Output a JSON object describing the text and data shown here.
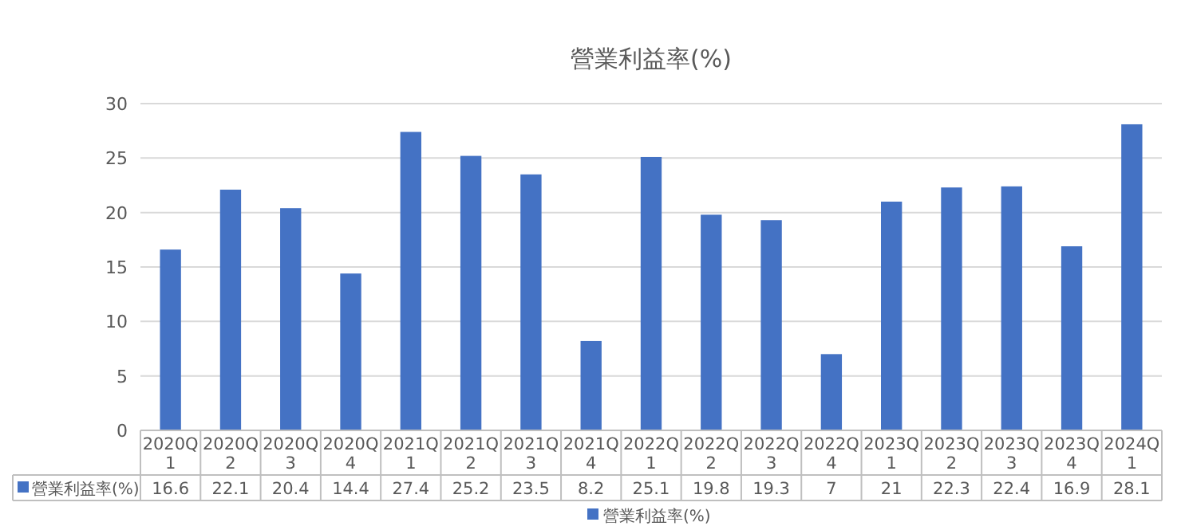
{
  "chart_data": {
    "type": "bar",
    "title": "營業利益率(%)",
    "categories": [
      "2020Q1",
      "2020Q2",
      "2020Q3",
      "2020Q4",
      "2021Q1",
      "2021Q2",
      "2021Q3",
      "2021Q4",
      "2022Q1",
      "2022Q2",
      "2022Q3",
      "2022Q4",
      "2023Q1",
      "2023Q2",
      "2023Q3",
      "2023Q4",
      "2024Q1"
    ],
    "series": [
      {
        "name": "營業利益率(%)",
        "color": "#4472c4",
        "values": [
          16.6,
          22.1,
          20.4,
          14.4,
          27.4,
          25.2,
          23.5,
          8.2,
          25.1,
          19.8,
          19.3,
          7,
          21,
          22.3,
          22.4,
          16.9,
          28.1
        ]
      }
    ],
    "ylim": [
      0,
      30
    ],
    "yticks": [
      0,
      5,
      10,
      15,
      20,
      25,
      30
    ],
    "grid": "y",
    "legend": "bottom",
    "data_labels": true
  }
}
